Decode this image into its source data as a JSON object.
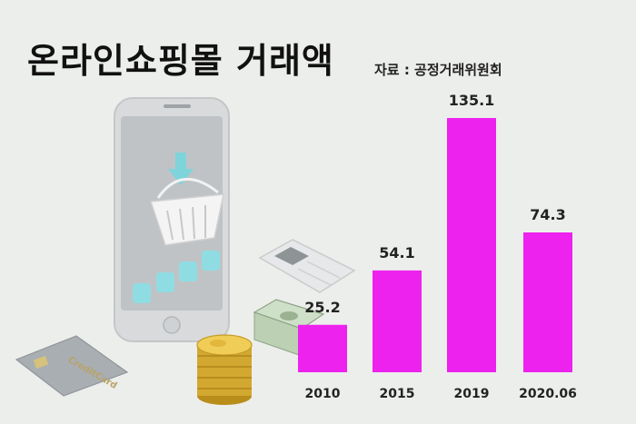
{
  "header": {
    "title": "온라인쇼핑몰 거래액",
    "source": "자료 : 공정거래위원회"
  },
  "illustration": {
    "card_text": "CreditCard"
  },
  "colors": {
    "background": "#eceeeb",
    "bar": "#ee22ee"
  },
  "chart_data": {
    "type": "bar",
    "title": "온라인쇼핑몰 거래액",
    "categories": [
      "2010",
      "2015",
      "2019",
      "2020.06"
    ],
    "values": [
      25.2,
      54.1,
      135.1,
      74.3
    ],
    "ylim": [
      0,
      135.1
    ],
    "grid": false,
    "legend": "none"
  }
}
